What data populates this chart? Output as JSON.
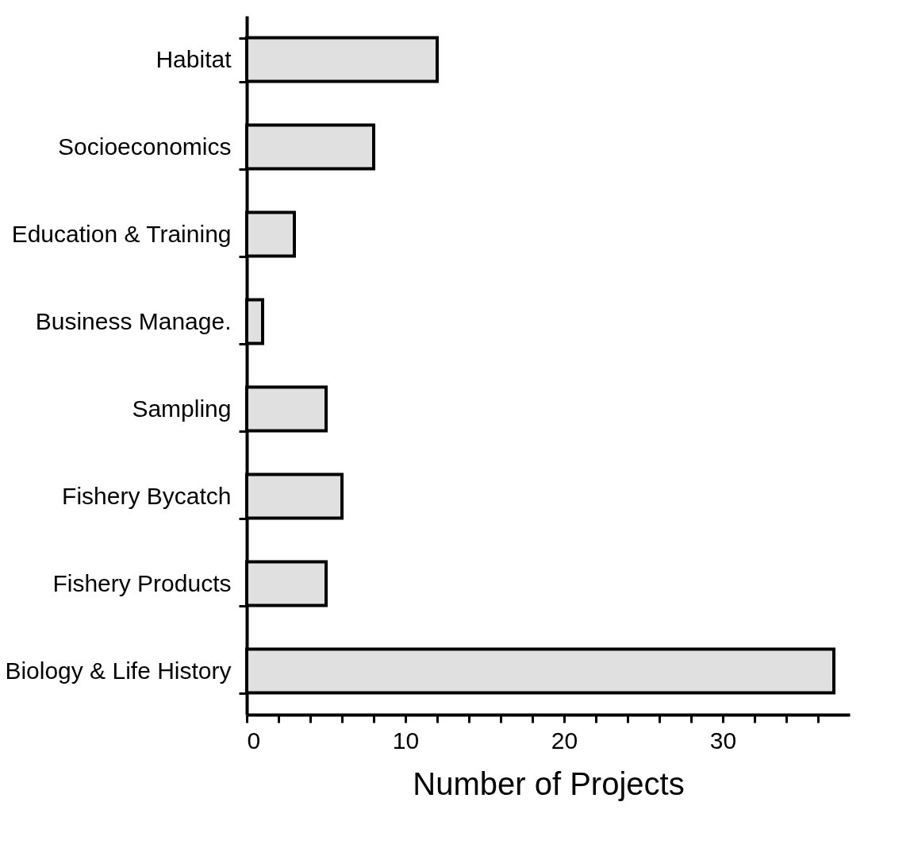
{
  "chart_data": {
    "type": "bar",
    "orientation": "horizontal",
    "xlabel": "Number of Projects",
    "categories": [
      "Habitat",
      "Socioeconomics",
      "Education & Training",
      "Business Manage.",
      "Sampling",
      "Fishery Bycatch",
      "Fishery Products",
      "Biology & Life History"
    ],
    "values": [
      12,
      8,
      3,
      1,
      5,
      6,
      5,
      37
    ],
    "color": "#e0e0e0",
    "xlim": [
      0,
      38
    ],
    "xticks": [
      0,
      {
        "value": 2,
        "label": null
      },
      {
        "value": 4,
        "label": null
      },
      {
        "value": 6,
        "label": null
      },
      {
        "value": 8,
        "label": null
      },
      10,
      {
        "value": 12,
        "label": null
      },
      {
        "value": 14,
        "label": null
      },
      {
        "value": 16,
        "label": null
      },
      {
        "value": 18,
        "label": null
      },
      20,
      {
        "value": 22,
        "label": null
      },
      {
        "value": 24,
        "label": null
      },
      {
        "value": 26,
        "label": null
      },
      {
        "value": 28,
        "label": null
      },
      30,
      {
        "value": 32,
        "label": null
      },
      {
        "value": 34,
        "label": null
      },
      {
        "value": 36,
        "label": null
      }
    ],
    "grid": false
  }
}
